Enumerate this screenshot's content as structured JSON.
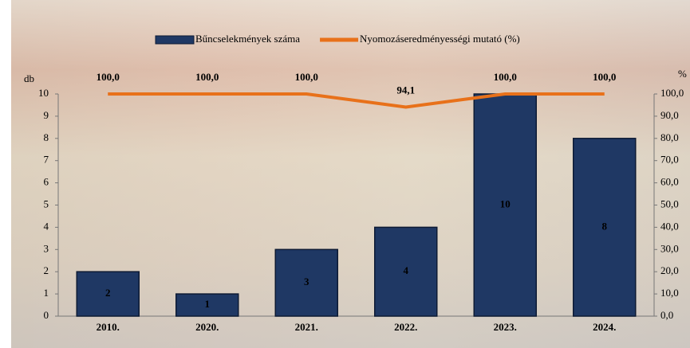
{
  "chart_data": {
    "type": "bar",
    "categories": [
      "2010.",
      "2020.",
      "2021.",
      "2022.",
      "2023.",
      "2024."
    ],
    "series": [
      {
        "name": "Bűncselekmények száma",
        "type": "bar",
        "color": "#1f3864",
        "values": [
          2,
          1,
          3,
          4,
          10,
          8
        ]
      },
      {
        "name": "Nyomozáseredményességi mutató (%)",
        "type": "line",
        "color": "#e8711a",
        "axis": "y2",
        "values": [
          100,
          100,
          100,
          94.1,
          100,
          100
        ],
        "value_labels": [
          "100,0",
          "100,0",
          "100,0",
          "94,1",
          "100,0",
          "100,0"
        ]
      }
    ],
    "ylabel": "db",
    "y2label": "%",
    "ylim": [
      0,
      10
    ],
    "yticks": [
      0,
      1,
      2,
      3,
      4,
      5,
      6,
      7,
      8,
      9,
      10
    ],
    "y2lim": [
      0,
      100
    ],
    "y2ticks": [
      {
        "value": 0,
        "label": "0,0"
      },
      {
        "value": 10,
        "label": "10,0"
      },
      {
        "value": 20,
        "label": "20,0"
      },
      {
        "value": 30,
        "label": "30,0"
      },
      {
        "value": 40,
        "label": "40,0"
      },
      {
        "value": 50,
        "label": "50,0"
      },
      {
        "value": 60,
        "label": "60,0"
      },
      {
        "value": 70,
        "label": "70,0"
      },
      {
        "value": 80,
        "label": "80,0"
      },
      {
        "value": 90,
        "label": "90,0"
      },
      {
        "value": 100,
        "label": "100,0"
      }
    ],
    "grid": false,
    "legend": "top"
  }
}
